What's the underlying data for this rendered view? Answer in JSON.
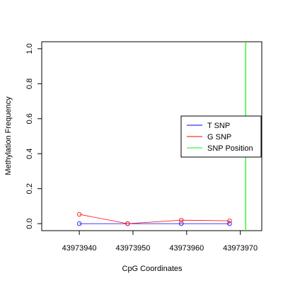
{
  "chart_data": {
    "type": "line",
    "xlabel": "CpG Coordinates",
    "ylabel": "Methylation Frequency",
    "xlim": [
      43973933,
      43973974
    ],
    "ylim": [
      -0.04,
      1.04
    ],
    "x_ticks": [
      43973940,
      43973950,
      43973960,
      43973970
    ],
    "x_tick_labels": [
      "43973940",
      "43973950",
      "43973960",
      "43973970"
    ],
    "y_ticks": [
      0.0,
      0.2,
      0.4,
      0.6,
      0.8,
      1.0
    ],
    "y_tick_labels": [
      "0.0",
      "0.2",
      "0.4",
      "0.6",
      "0.8",
      "1.0"
    ],
    "grid": false,
    "legend_position": "right",
    "series": [
      {
        "name": "T SNP",
        "color": "#0000ff",
        "x": [
          43973940,
          43973949,
          43973959,
          43973968
        ],
        "y": [
          0.0,
          0.0,
          0.0,
          0.0
        ]
      },
      {
        "name": "G SNP",
        "color": "#ff0000",
        "x": [
          43973940,
          43973949,
          43973959,
          43973968
        ],
        "y": [
          0.053,
          0.0,
          0.02,
          0.016
        ]
      }
    ],
    "vline": {
      "name": "SNP Position",
      "x": 43973971,
      "color": "#00ff00"
    },
    "legend": [
      {
        "name": "T SNP",
        "color": "#0000ff"
      },
      {
        "name": "G SNP",
        "color": "#ff0000"
      },
      {
        "name": "SNP Position",
        "color": "#00ff00"
      }
    ]
  }
}
